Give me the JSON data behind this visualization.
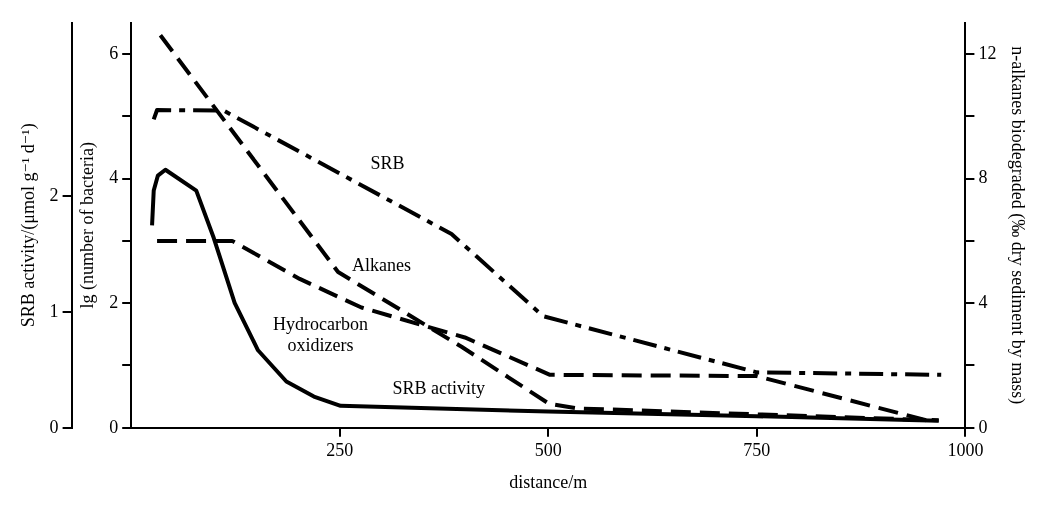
{
  "chart_data": {
    "type": "line",
    "xlabel": "distance/m",
    "ylabel": "lg (number of bacteria)",
    "y2label": "n-alkanes biodegraded (‰ dry sediment by mass)",
    "y3label": "SRB activity/(μmol g⁻¹ d⁻¹)",
    "xlim": [
      0,
      1000
    ],
    "xticks": [
      250,
      500,
      750,
      1000
    ],
    "ylim": [
      0,
      6.5
    ],
    "yticks": [
      0,
      {
        "value": 1,
        "label": null
      },
      2,
      {
        "value": 3,
        "label": null
      },
      4,
      {
        "value": 5,
        "label": null
      },
      6
    ],
    "y2lim": [
      0,
      13
    ],
    "y2ticks": [
      0,
      {
        "value": 2,
        "label": null
      },
      4,
      {
        "value": 6,
        "label": null
      },
      8,
      {
        "value": 10,
        "label": null
      },
      12
    ],
    "y3lim": [
      0,
      3.5
    ],
    "y3ticks": [
      0,
      1,
      2
    ],
    "grid": false,
    "legend": false,
    "marker": "none",
    "series": [
      {
        "name": "SRB",
        "color": "#000000",
        "line_style": "dashdot",
        "x": [
          27,
          31,
          111,
          384,
          494,
          750,
          971
        ],
        "values": [
          4.95,
          5.1,
          5.09,
          3.11,
          1.79,
          0.89,
          0.85
        ]
      },
      {
        "name": "Alkanes",
        "color": "#000000",
        "line_style": "dashed",
        "axis": "y2",
        "x": [
          35,
          248,
          396,
          501,
          536,
          968
        ],
        "values": [
          12.6,
          5.0,
          2.6,
          0.77,
          0.62,
          0.24
        ]
      },
      {
        "name": "Hydrocarbon oxidizers",
        "color": "#000000",
        "line_style": "dashed",
        "x": [
          31,
          121,
          202,
          276,
          400,
          502,
          750,
          959
        ],
        "values": [
          3.0,
          3.0,
          2.39,
          1.93,
          1.45,
          0.85,
          0.83,
          0.1
        ]
      },
      {
        "name": "SRB activity",
        "color": "#000000",
        "line_style": "solid",
        "axis": "y3",
        "x": [
          25,
          27,
          32,
          41,
          78,
          99,
          124,
          152,
          186,
          219,
          251,
          500,
          750,
          968
        ],
        "values": [
          1.75,
          2.05,
          2.18,
          2.23,
          2.05,
          1.64,
          1.08,
          0.67,
          0.4,
          0.27,
          0.19,
          0.14,
          0.1,
          0.06
        ]
      }
    ]
  }
}
